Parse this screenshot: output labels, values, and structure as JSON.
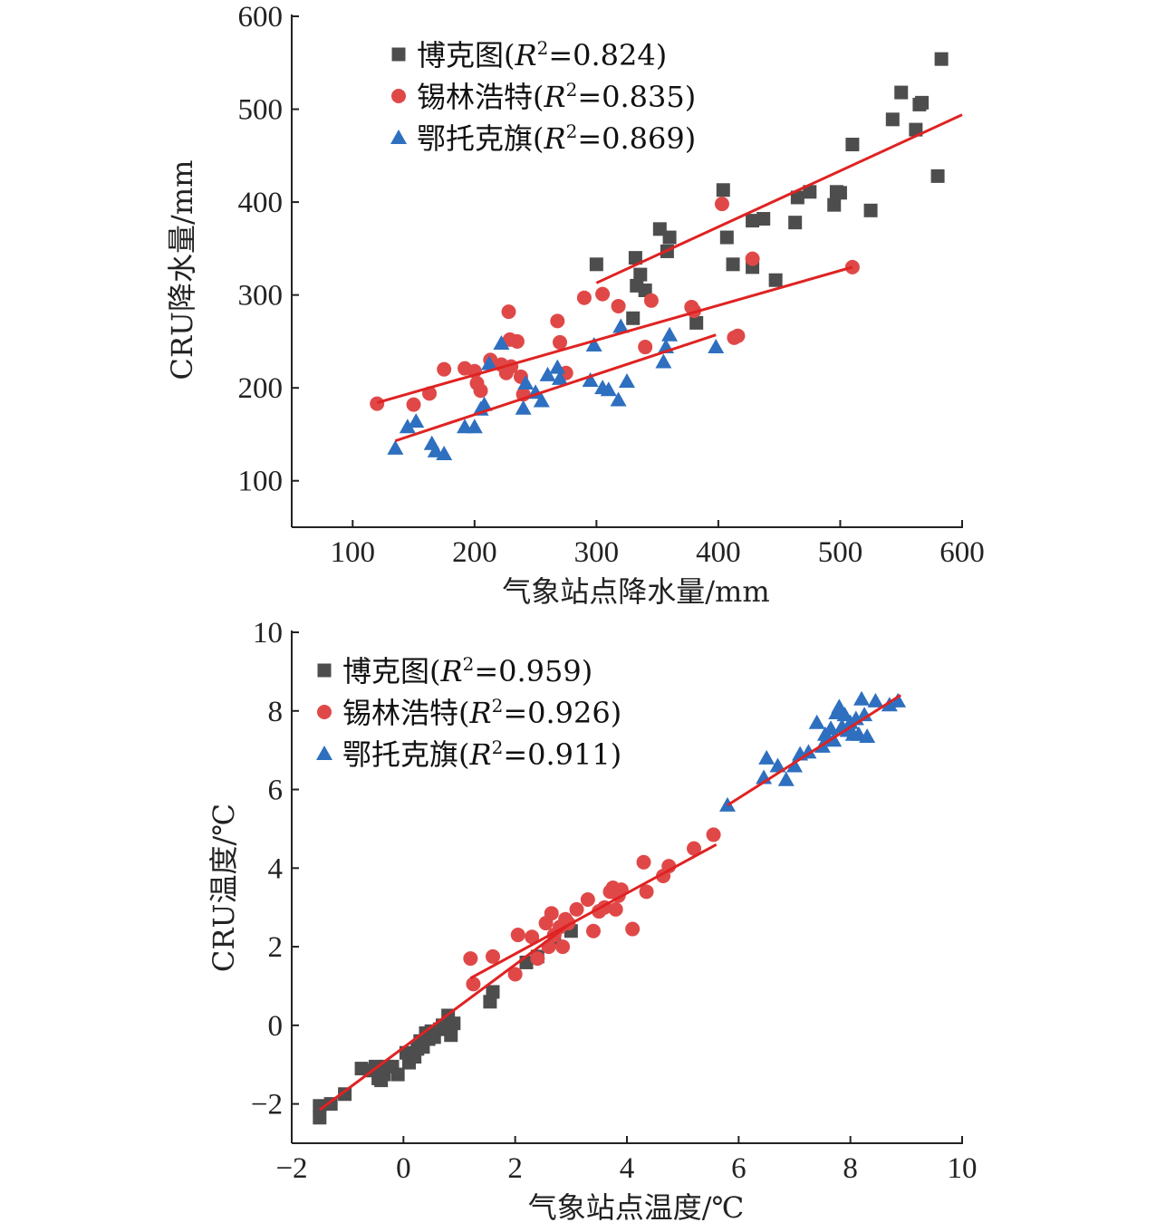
{
  "chart_data": [
    {
      "type": "scatter",
      "xlabel": "气象站点降水量/mm",
      "ylabel": "CRU降水量/mm",
      "xlim": [
        50,
        600
      ],
      "ylim": [
        50,
        600
      ],
      "xticks": [
        100,
        200,
        300,
        400,
        500,
        600
      ],
      "yticks": [
        100,
        200,
        300,
        400,
        500,
        600
      ],
      "series": [
        {
          "name": "博克图",
          "r2_label": "R",
          "r2_value": "=0.824)",
          "marker": "square",
          "color": "#4d4d4d",
          "points": [
            [
              300,
              333
            ],
            [
              330,
              275
            ],
            [
              332,
              340
            ],
            [
              333,
              310
            ],
            [
              336,
              322
            ],
            [
              340,
              305
            ],
            [
              352,
              371
            ],
            [
              358,
              347
            ],
            [
              360,
              362
            ],
            [
              382,
              270
            ],
            [
              404,
              413
            ],
            [
              407,
              362
            ],
            [
              412,
              333
            ],
            [
              428,
              380
            ],
            [
              428,
              330
            ],
            [
              437,
              382
            ],
            [
              447,
              316
            ],
            [
              463,
              378
            ],
            [
              465,
              405
            ],
            [
              475,
              411
            ],
            [
              495,
              397
            ],
            [
              497,
              411
            ],
            [
              500,
              410
            ],
            [
              510,
              462
            ],
            [
              525,
              391
            ],
            [
              543,
              489
            ],
            [
              550,
              518
            ],
            [
              562,
              478
            ],
            [
              565,
              505
            ],
            [
              567,
              507
            ],
            [
              580,
              428
            ],
            [
              583,
              554
            ]
          ],
          "fit": [
            [
              300,
              313
            ],
            [
              600,
              494
            ]
          ]
        },
        {
          "name": "锡林浩特",
          "r2_label": "R",
          "r2_value": "=0.835)",
          "marker": "circle",
          "color": "#e04848",
          "points": [
            [
              120,
              183
            ],
            [
              150,
              182
            ],
            [
              163,
              194
            ],
            [
              175,
              220
            ],
            [
              192,
              221
            ],
            [
              200,
              218
            ],
            [
              202,
              205
            ],
            [
              205,
              197
            ],
            [
              213,
              230
            ],
            [
              222,
              225
            ],
            [
              226,
              216
            ],
            [
              228,
              282
            ],
            [
              229,
              252
            ],
            [
              230,
              223
            ],
            [
              235,
              250
            ],
            [
              238,
              212
            ],
            [
              240,
              193
            ],
            [
              268,
              272
            ],
            [
              270,
              249
            ],
            [
              275,
              216
            ],
            [
              290,
              297
            ],
            [
              305,
              301
            ],
            [
              318,
              288
            ],
            [
              340,
              244
            ],
            [
              345,
              294
            ],
            [
              378,
              287
            ],
            [
              380,
              283
            ],
            [
              403,
              398
            ],
            [
              413,
              254
            ],
            [
              416,
              256
            ],
            [
              428,
              339
            ],
            [
              510,
              330
            ]
          ],
          "fit": [
            [
              120,
              184
            ],
            [
              510,
              330
            ]
          ]
        },
        {
          "name": "鄂托克旗",
          "r2_label": "R",
          "r2_value": "=0.869)",
          "marker": "triangle",
          "color": "#2e6fbf",
          "points": [
            [
              135,
              135
            ],
            [
              145,
              158
            ],
            [
              152,
              164
            ],
            [
              165,
              140
            ],
            [
              168,
              132
            ],
            [
              175,
              129
            ],
            [
              192,
              158
            ],
            [
              200,
              158
            ],
            [
              205,
              177
            ],
            [
              208,
              182
            ],
            [
              212,
              226
            ],
            [
              222,
              248
            ],
            [
              240,
              178
            ],
            [
              242,
              205
            ],
            [
              250,
              195
            ],
            [
              255,
              186
            ],
            [
              260,
              214
            ],
            [
              268,
              222
            ],
            [
              270,
              210
            ],
            [
              295,
              208
            ],
            [
              298,
              246
            ],
            [
              305,
              200
            ],
            [
              310,
              198
            ],
            [
              318,
              187
            ],
            [
              320,
              266
            ],
            [
              325,
              207
            ],
            [
              355,
              228
            ],
            [
              357,
              244
            ],
            [
              360,
              257
            ],
            [
              398,
              244
            ]
          ],
          "fit": [
            [
              135,
              143
            ],
            [
              398,
              257
            ]
          ]
        }
      ]
    },
    {
      "type": "scatter",
      "xlabel": "气象站点温度/℃",
      "ylabel": "CRU温度/℃",
      "xlim": [
        -2,
        10
      ],
      "ylim": [
        -3,
        10
      ],
      "xticks": [
        -2,
        0,
        2,
        4,
        6,
        8,
        10
      ],
      "yticks": [
        -2,
        0,
        2,
        4,
        6,
        8,
        10
      ],
      "series": [
        {
          "name": "博克图",
          "r2_label": "R",
          "r2_value": "=0.959)",
          "marker": "square",
          "color": "#4d4d4d",
          "points": [
            [
              -1.5,
              -2.35
            ],
            [
              -1.5,
              -2.05
            ],
            [
              -1.3,
              -2.0
            ],
            [
              -1.05,
              -1.75
            ],
            [
              -0.75,
              -1.1
            ],
            [
              -0.6,
              -1.15
            ],
            [
              -0.5,
              -1.05
            ],
            [
              -0.45,
              -1.35
            ],
            [
              -0.4,
              -1.4
            ],
            [
              -0.35,
              -1.25
            ],
            [
              -0.3,
              -1.05
            ],
            [
              -0.2,
              -1.05
            ],
            [
              -0.1,
              -1.25
            ],
            [
              0.05,
              -0.7
            ],
            [
              0.1,
              -0.95
            ],
            [
              0.2,
              -0.8
            ],
            [
              0.25,
              -0.6
            ],
            [
              0.3,
              -0.4
            ],
            [
              0.35,
              -0.55
            ],
            [
              0.4,
              -0.2
            ],
            [
              0.45,
              -0.35
            ],
            [
              0.5,
              -0.15
            ],
            [
              0.55,
              -0.3
            ],
            [
              0.65,
              -0.1
            ],
            [
              0.7,
              0.0
            ],
            [
              0.8,
              0.25
            ],
            [
              0.85,
              -0.25
            ],
            [
              0.9,
              0.05
            ],
            [
              1.55,
              0.6
            ],
            [
              1.6,
              0.85
            ],
            [
              2.2,
              1.6
            ],
            [
              2.4,
              1.75
            ],
            [
              2.7,
              2.2
            ],
            [
              3.0,
              2.4
            ]
          ],
          "fit": [
            [
              -1.5,
              -2.15
            ],
            [
              3.0,
              2.6
            ]
          ]
        },
        {
          "name": "锡林浩特",
          "r2_label": "R",
          "r2_value": "=0.926)",
          "marker": "circle",
          "color": "#e04848",
          "points": [
            [
              1.2,
              1.7
            ],
            [
              1.25,
              1.05
            ],
            [
              1.6,
              1.75
            ],
            [
              2.0,
              1.3
            ],
            [
              2.05,
              2.3
            ],
            [
              2.3,
              2.25
            ],
            [
              2.4,
              1.7
            ],
            [
              2.55,
              2.6
            ],
            [
              2.6,
              2.0
            ],
            [
              2.65,
              2.85
            ],
            [
              2.7,
              2.3
            ],
            [
              2.8,
              2.5
            ],
            [
              2.85,
              2.0
            ],
            [
              2.9,
              2.7
            ],
            [
              2.95,
              2.6
            ],
            [
              3.1,
              2.95
            ],
            [
              3.3,
              3.2
            ],
            [
              3.4,
              2.4
            ],
            [
              3.5,
              2.9
            ],
            [
              3.6,
              3.0
            ],
            [
              3.7,
              3.4
            ],
            [
              3.75,
              3.5
            ],
            [
              3.8,
              2.95
            ],
            [
              3.85,
              3.3
            ],
            [
              3.9,
              3.45
            ],
            [
              4.1,
              2.45
            ],
            [
              4.3,
              4.15
            ],
            [
              4.35,
              3.4
            ],
            [
              4.65,
              3.8
            ],
            [
              4.75,
              4.05
            ],
            [
              5.2,
              4.5
            ],
            [
              5.55,
              4.85
            ]
          ],
          "fit": [
            [
              1.2,
              1.2
            ],
            [
              5.6,
              4.6
            ]
          ]
        },
        {
          "name": "鄂托克旗",
          "r2_label": "R",
          "r2_value": "=0.911)",
          "marker": "triangle",
          "color": "#2e6fbf",
          "points": [
            [
              5.8,
              5.6
            ],
            [
              6.45,
              6.3
            ],
            [
              6.5,
              6.8
            ],
            [
              6.7,
              6.6
            ],
            [
              6.85,
              6.25
            ],
            [
              7.0,
              6.6
            ],
            [
              7.1,
              6.9
            ],
            [
              7.25,
              6.95
            ],
            [
              7.4,
              7.7
            ],
            [
              7.5,
              7.1
            ],
            [
              7.55,
              7.4
            ],
            [
              7.6,
              7.3
            ],
            [
              7.65,
              7.55
            ],
            [
              7.7,
              7.25
            ],
            [
              7.75,
              7.95
            ],
            [
              7.8,
              8.1
            ],
            [
              7.85,
              7.6
            ],
            [
              7.9,
              7.9
            ],
            [
              7.95,
              7.5
            ],
            [
              8.0,
              7.7
            ],
            [
              8.05,
              7.4
            ],
            [
              8.1,
              7.8
            ],
            [
              8.15,
              7.4
            ],
            [
              8.2,
              8.3
            ],
            [
              8.25,
              7.9
            ],
            [
              8.3,
              7.35
            ],
            [
              8.45,
              8.25
            ],
            [
              8.7,
              8.15
            ],
            [
              8.85,
              8.25
            ]
          ],
          "fit": [
            [
              5.8,
              5.6
            ],
            [
              8.9,
              8.4
            ]
          ]
        }
      ]
    }
  ]
}
